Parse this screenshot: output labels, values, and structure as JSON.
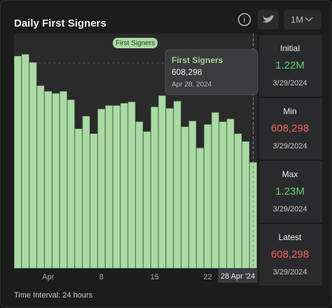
{
  "header": {
    "title": "Daily First Signers",
    "range_button": "1M"
  },
  "chart_data": {
    "type": "bar",
    "categories": [
      null,
      null,
      null,
      null,
      "Apr",
      null,
      null,
      null,
      null,
      null,
      null,
      "8",
      null,
      null,
      null,
      null,
      null,
      null,
      "15",
      null,
      null,
      null,
      null,
      null,
      null,
      "22",
      null,
      null,
      null,
      null,
      null,
      "28 Apr '24"
    ],
    "series": [
      {
        "name": "First Signers",
        "color": "#a9dba3",
        "values": [
          1220000,
          1230000,
          1183000,
          1049000,
          1017000,
          1005000,
          1017000,
          968000,
          801000,
          874000,
          773000,
          915000,
          935000,
          935000,
          948000,
          956000,
          842000,
          785000,
          927000,
          992000,
          919000,
          960000,
          813000,
          846000,
          691000,
          826000,
          895000,
          842000,
          858000,
          773000,
          728000,
          608298
        ]
      }
    ],
    "ylim": [
      0,
      1350000
    ],
    "tooltip": {
      "title": "First Signers",
      "value": "608,298",
      "date": "Apr 28, 2024"
    }
  },
  "stats": [
    {
      "label": "Initial",
      "value": "1.22M",
      "date": "3/29/2024",
      "color": "#5ed27a"
    },
    {
      "label": "Min",
      "value": "608,298",
      "date": "3/29/2024",
      "color": "#ef6460"
    },
    {
      "label": "Max",
      "value": "1.23M",
      "date": "3/29/2024",
      "color": "#5ed27a"
    },
    {
      "label": "Latest",
      "value": "608,298",
      "date": "3/29/2024",
      "color": "#ef6460"
    }
  ],
  "footer": "Time Interval: 24 hours"
}
